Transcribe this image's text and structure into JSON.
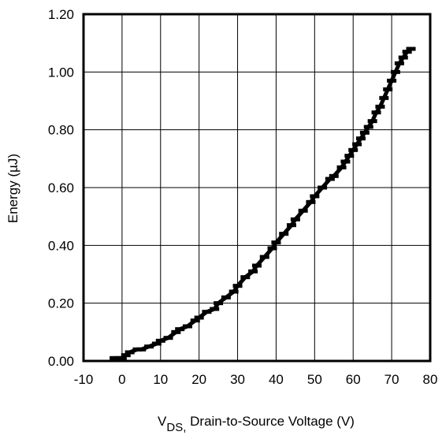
{
  "chart_data": {
    "type": "scatter",
    "xlabel_sub": "DS,",
    "xlabel_main": "V",
    "xlabel_rest": " Drain-to-Source Voltage (V)",
    "ylabel": "Energy (µJ)",
    "xlim": [
      -10,
      80
    ],
    "ylim": [
      0,
      1.2
    ],
    "x_ticks": [
      "-10",
      "0",
      "10",
      "20",
      "30",
      "40",
      "50",
      "60",
      "70",
      "80"
    ],
    "y_ticks": [
      "0.00",
      "0.20",
      "0.40",
      "0.60",
      "0.80",
      "1.00",
      "1.20"
    ],
    "grid": true,
    "legend": "none",
    "marker_color": "#000000",
    "series": [
      {
        "x": [
          -2,
          0,
          1,
          2,
          4,
          5,
          7,
          9,
          10,
          12,
          14,
          15,
          17,
          19,
          20,
          22,
          24,
          25,
          27,
          29,
          30,
          32,
          34,
          35,
          37,
          39,
          40,
          42,
          44,
          45,
          47,
          49,
          50,
          52,
          54,
          55,
          57,
          58,
          59,
          60,
          61,
          62,
          63,
          64,
          65,
          66,
          67,
          68,
          69,
          70,
          71,
          72,
          73,
          74,
          75
        ],
        "y": [
          0.01,
          0.01,
          0.02,
          0.03,
          0.04,
          0.04,
          0.05,
          0.06,
          0.07,
          0.08,
          0.1,
          0.11,
          0.12,
          0.14,
          0.15,
          0.17,
          0.18,
          0.2,
          0.22,
          0.24,
          0.26,
          0.29,
          0.31,
          0.33,
          0.36,
          0.39,
          0.41,
          0.44,
          0.47,
          0.49,
          0.52,
          0.55,
          0.57,
          0.6,
          0.63,
          0.64,
          0.67,
          0.69,
          0.71,
          0.73,
          0.75,
          0.77,
          0.79,
          0.81,
          0.83,
          0.86,
          0.88,
          0.91,
          0.94,
          0.97,
          1.0,
          1.03,
          1.05,
          1.07,
          1.08
        ]
      }
    ]
  }
}
